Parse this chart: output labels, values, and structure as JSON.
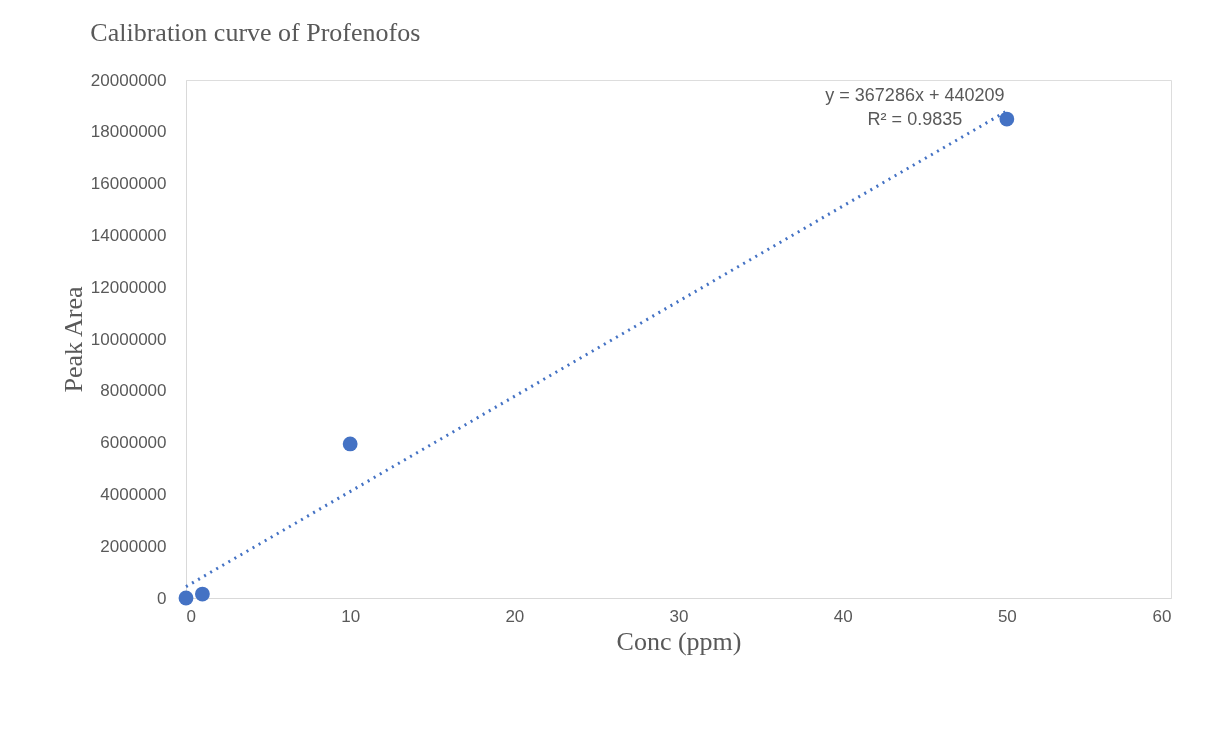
{
  "chart_data": {
    "type": "scatter",
    "title": "Calibration curve of Profenofos",
    "xlabel": "Conc (ppm)",
    "ylabel": "Peak Area",
    "series": [
      {
        "color": "#4472c4",
        "x": [
          0,
          1,
          10,
          50
        ],
        "values": [
          0,
          150000,
          5950000,
          18490000
        ],
        "marker": "circle"
      },
      {
        "type": "line",
        "color": "#4472c4",
        "x": [
          0,
          50
        ],
        "values": [
          440000,
          18800000
        ],
        "line_style": "dotted"
      }
    ],
    "annotations": [
      "y = 367286x + 440209",
      "R² = 0.9835"
    ],
    "xlim": [
      0,
      60
    ],
    "xticks": [
      0,
      10,
      20,
      30,
      40,
      50,
      60
    ],
    "ylim": [
      0,
      20000000
    ],
    "yticks": [
      0,
      2000000,
      4000000,
      6000000,
      8000000,
      10000000,
      12000000,
      14000000,
      16000000,
      18000000,
      20000000
    ],
    "grid": false
  }
}
